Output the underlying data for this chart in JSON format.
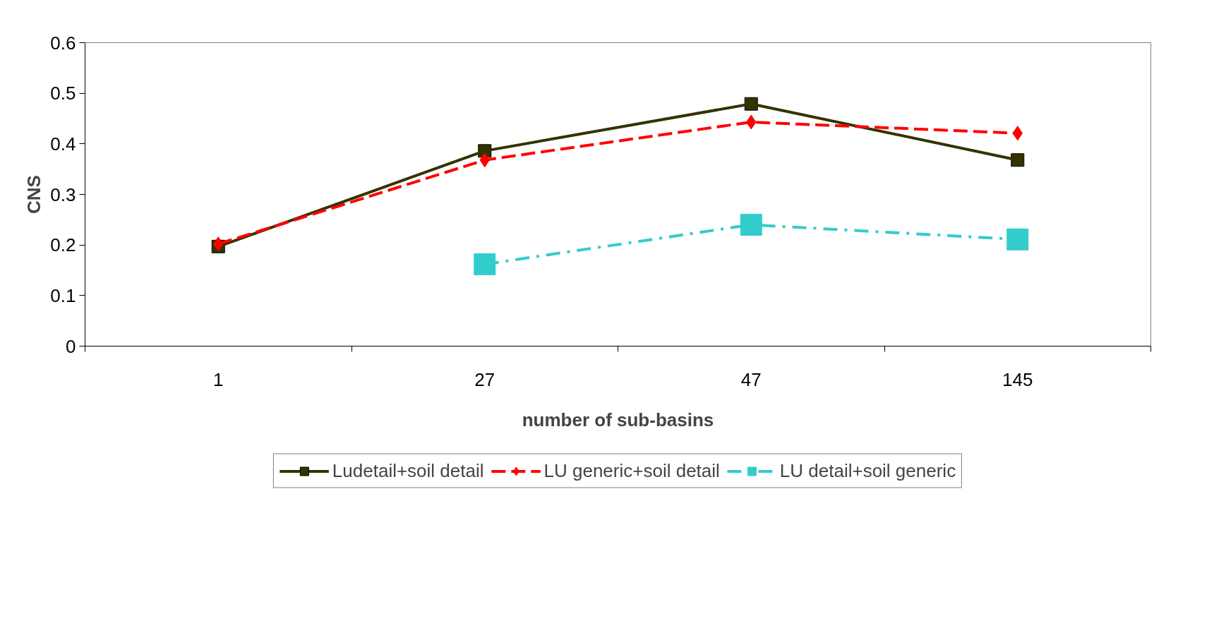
{
  "chart_data": {
    "type": "line",
    "xlabel": "number of sub-basins",
    "ylabel": "CNS",
    "categories": [
      "1",
      "27",
      "47",
      "145"
    ],
    "ylim": [
      0,
      0.6
    ],
    "yticks": [
      0,
      0.1,
      0.2,
      0.3,
      0.4,
      0.5,
      0.6
    ],
    "grid": false,
    "legend": "bottom",
    "series": [
      {
        "name": "Ludetail+soil detail",
        "color": "#333300",
        "marker": "square",
        "line_style": "solid",
        "values": [
          0.197,
          0.386,
          0.479,
          0.368
        ]
      },
      {
        "name": "LU generic+soil detail",
        "color": "#ff0000",
        "marker": "diamond",
        "line_style": "dashed",
        "values": [
          0.202,
          0.368,
          0.443,
          0.421
        ]
      },
      {
        "name": "LU detail+soil generic",
        "color": "#33cccc",
        "marker": "square",
        "line_style": "dashdot",
        "values": [
          null,
          0.162,
          0.24,
          0.211
        ]
      }
    ]
  }
}
